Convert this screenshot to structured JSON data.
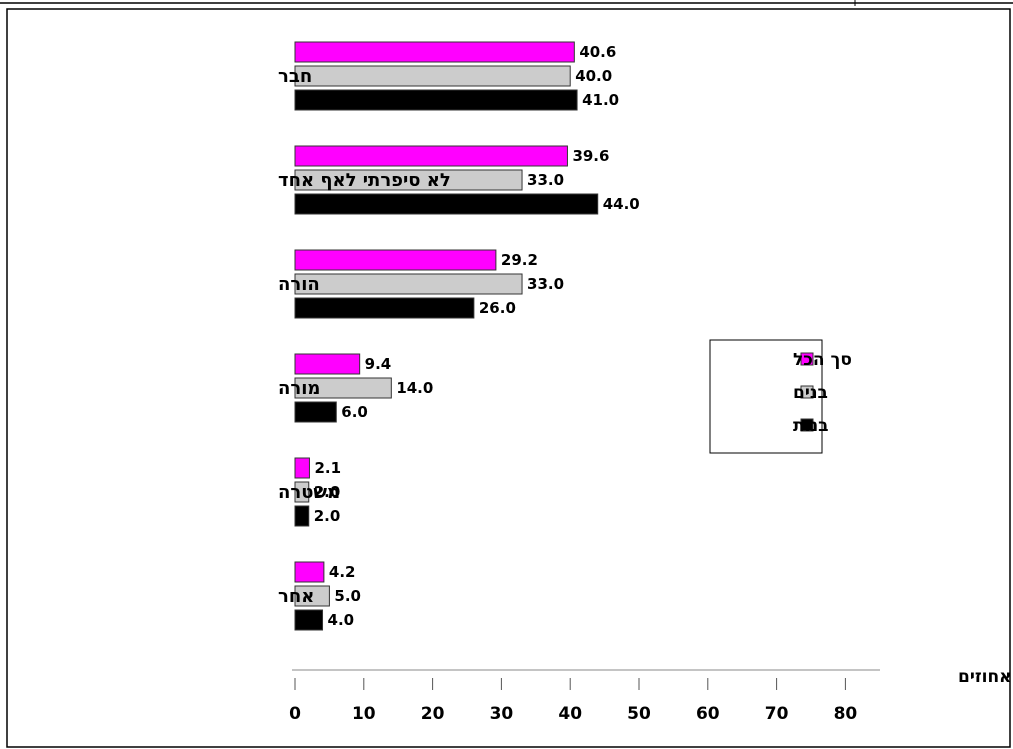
{
  "chart_data": {
    "type": "bar",
    "orientation": "horizontal",
    "categories": [
      "חבר",
      "לא סיפרתי לאף אחד",
      "הורה",
      "מורה",
      "משטרה",
      "אחר"
    ],
    "series": [
      {
        "name": "סך הכל",
        "color": "#ff00ff",
        "values": [
          40.6,
          39.6,
          29.2,
          9.4,
          2.1,
          4.2
        ]
      },
      {
        "name": "בנים",
        "color": "#cccccc",
        "values": [
          40.0,
          33.0,
          33.0,
          14.0,
          2.0,
          5.0
        ]
      },
      {
        "name": "בנות",
        "color": "#000000",
        "values": [
          41.0,
          44.0,
          26.0,
          6.0,
          2.0,
          4.0
        ]
      }
    ],
    "value_labels": [
      [
        "40.6",
        "39.6",
        "29.2",
        "9.4",
        "2.1",
        "4.2"
      ],
      [
        "40.0",
        "33.0",
        "33.0",
        "14.0",
        "2.0",
        "5.0"
      ],
      [
        "41.0",
        "44.0",
        "26.0",
        "6.0",
        "2.0",
        "4.0"
      ]
    ],
    "xlabel": "אחוזים",
    "ylabel": "",
    "xlim": [
      0,
      80
    ],
    "x_ticks": [
      0,
      10,
      20,
      30,
      40,
      50,
      60,
      70,
      80
    ],
    "grid": false,
    "legend_position": "right"
  }
}
